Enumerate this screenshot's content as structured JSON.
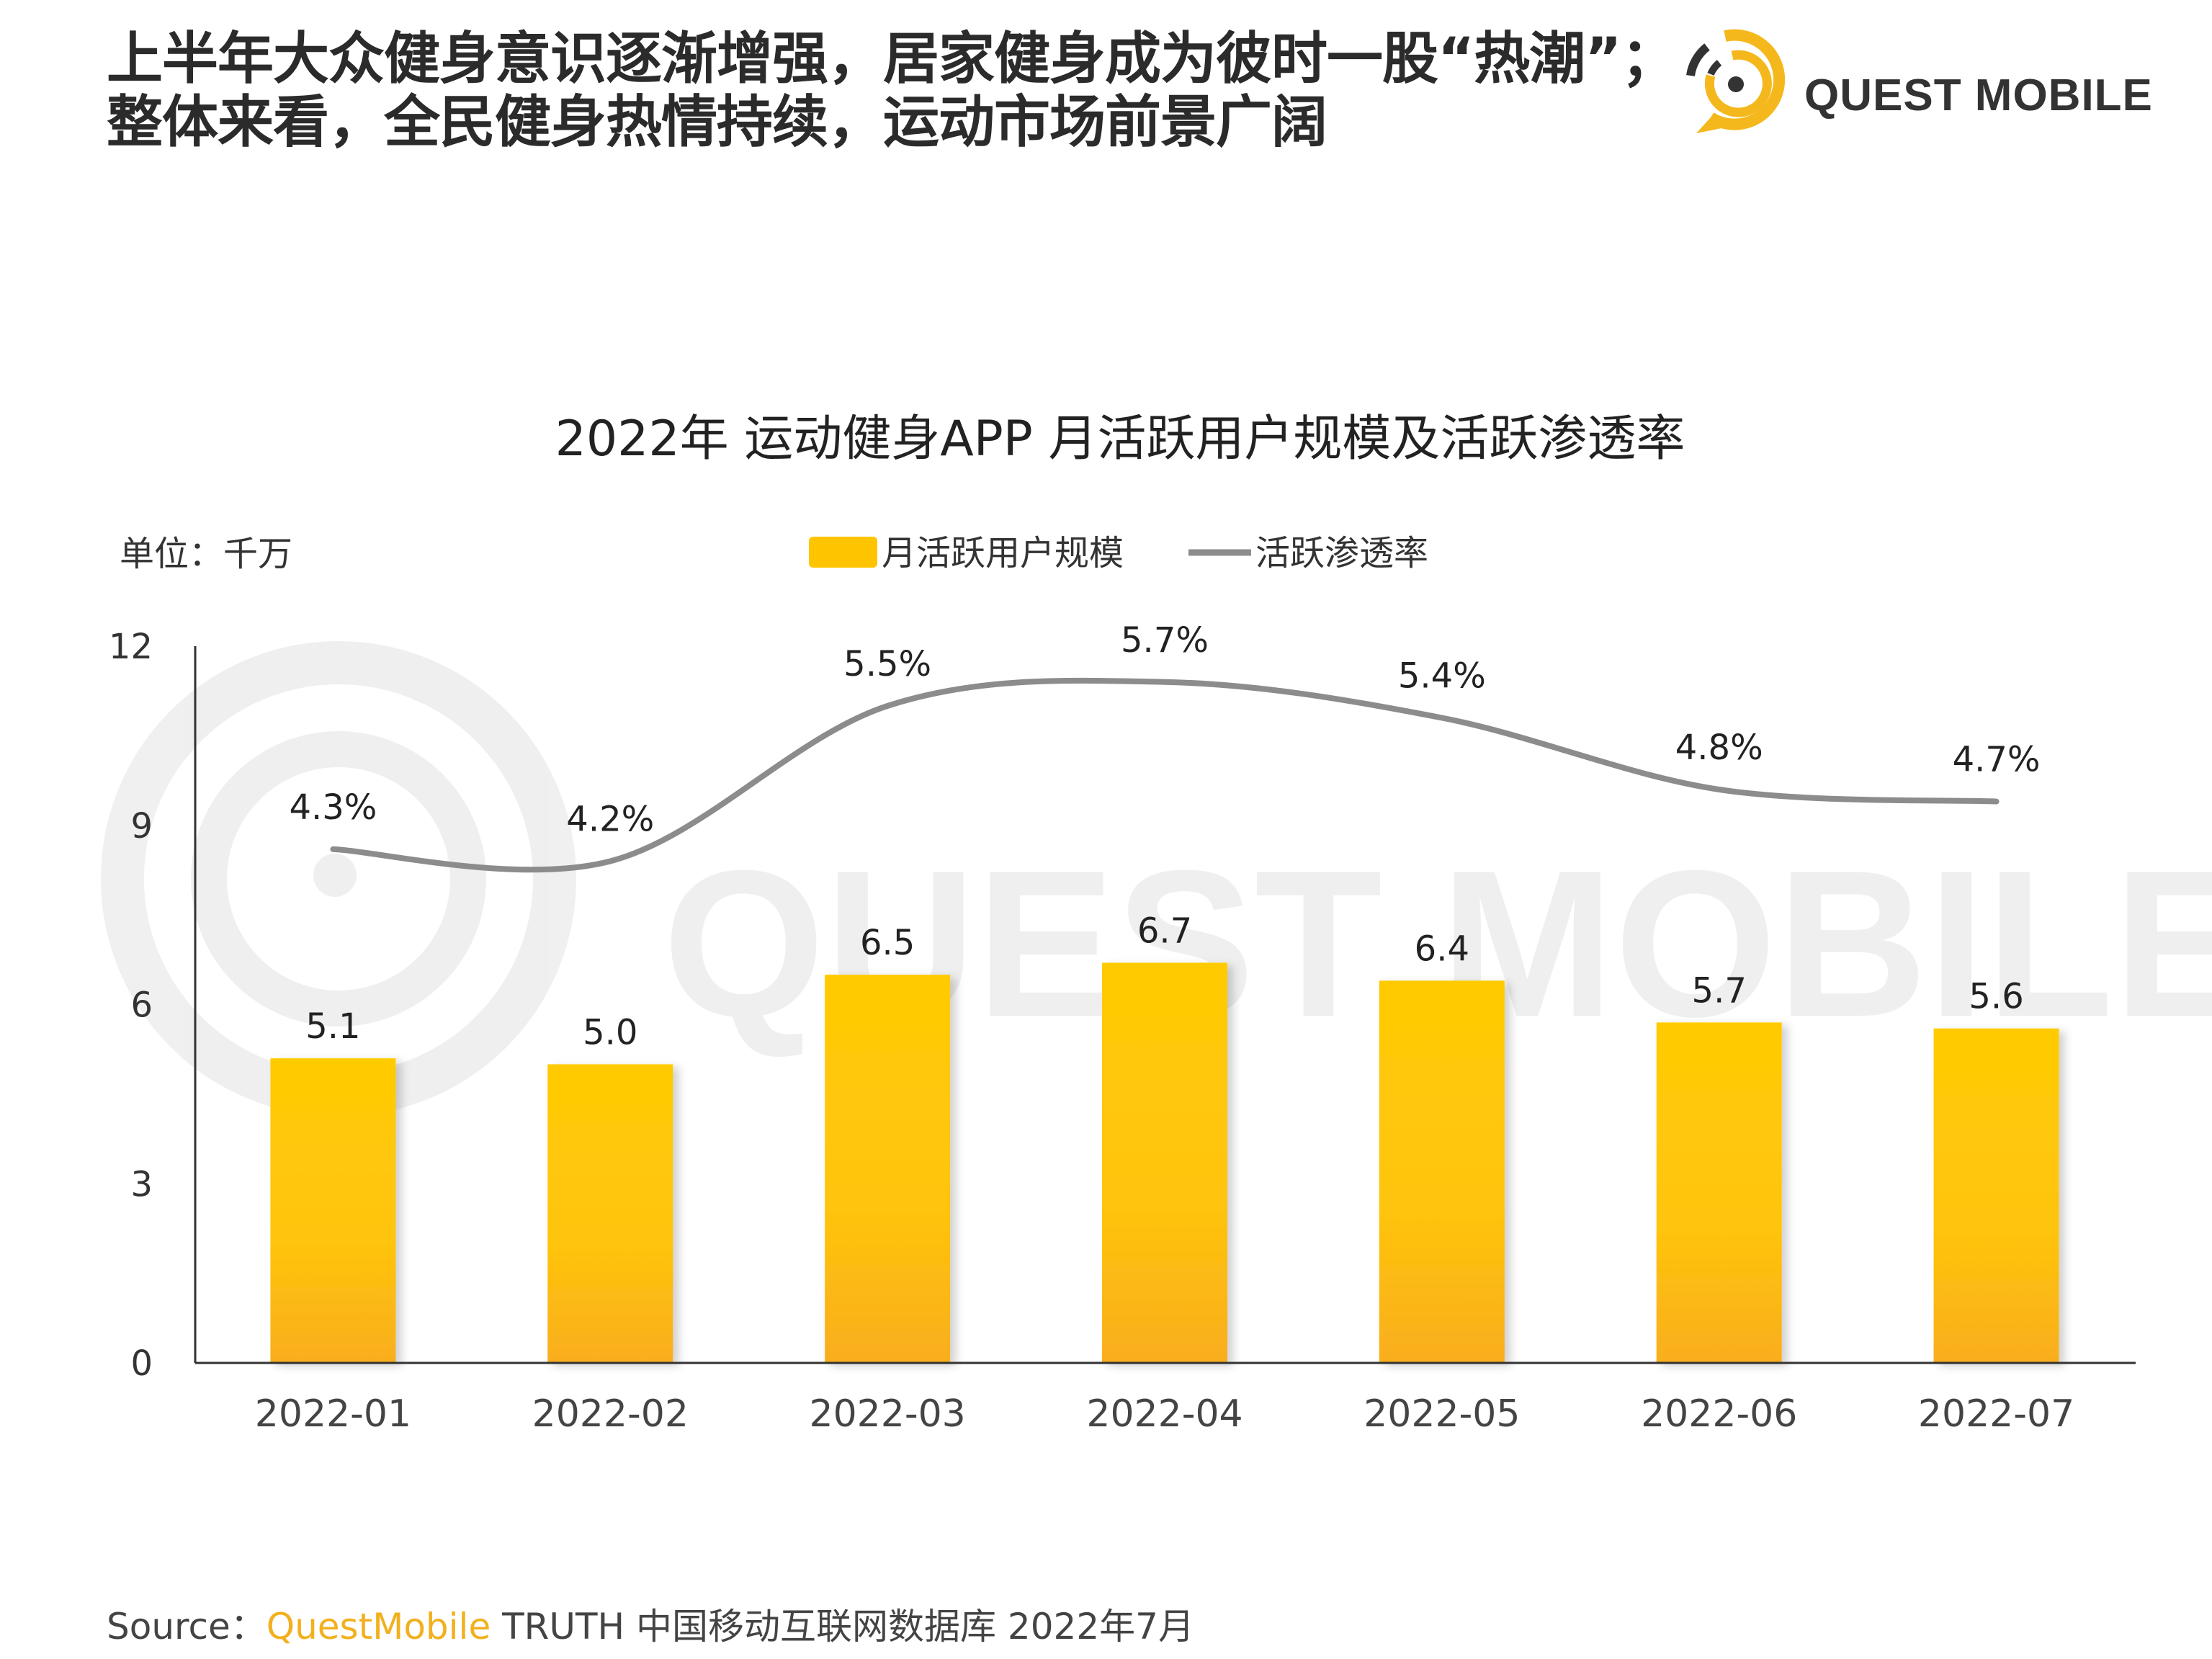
{
  "headline": {
    "line1": "上半年大众健身意识逐渐增强，居家健身成为彼时一股“热潮”；",
    "line2": "整体来看，全民健身热情持续，运动市场前景广阔"
  },
  "logo": {
    "text": "QUEST MOBILE"
  },
  "watermark": "QUEST MOBILE",
  "chart_data": {
    "type": "bar+line",
    "title": "2022年 运动健身APP 月活跃用户规模及活跃渗透率",
    "unit_label": "单位：千万",
    "categories": [
      "2022-01",
      "2022-02",
      "2022-03",
      "2022-04",
      "2022-05",
      "2022-06",
      "2022-07"
    ],
    "series": [
      {
        "name": "月活跃用户规模",
        "type": "bar",
        "axis": "left",
        "values": [
          5.1,
          5.0,
          6.5,
          6.7,
          6.4,
          5.7,
          5.6
        ],
        "labels": [
          "5.1",
          "5.0",
          "6.5",
          "6.7",
          "6.4",
          "5.7",
          "5.6"
        ],
        "color": "#ffc800"
      },
      {
        "name": "活跃渗透率",
        "type": "line",
        "axis": "right-hidden",
        "values": [
          4.3,
          4.2,
          5.5,
          5.7,
          5.4,
          4.8,
          4.7
        ],
        "labels": [
          "4.3%",
          "4.2%",
          "5.5%",
          "5.7%",
          "5.4%",
          "4.8%",
          "4.7%"
        ],
        "color": "#8c8c8c",
        "smooth": true
      }
    ],
    "y_axis": {
      "ylim": [
        0,
        12
      ],
      "ticks": [
        "0",
        "3",
        "6",
        "9",
        "12"
      ]
    },
    "y2_range_percent": [
      0,
      6
    ],
    "grid": false,
    "legend": "top-center"
  },
  "source": {
    "prefix": "Source：",
    "brand": "QuestMobile",
    "rest": " TRUTH 中国移动互联网数据库 2022年7月"
  }
}
